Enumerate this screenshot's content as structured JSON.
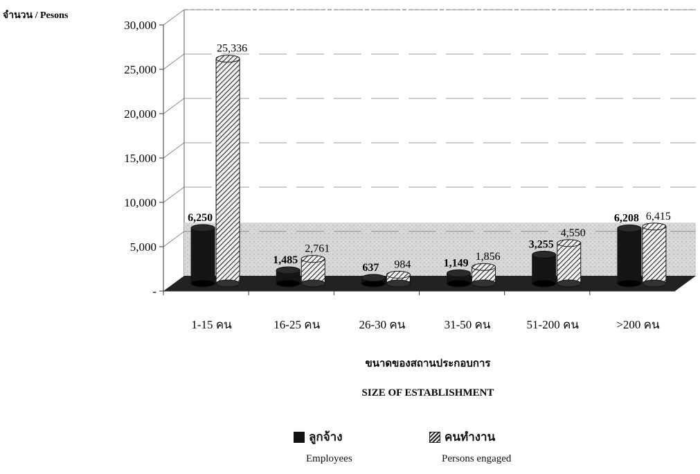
{
  "chart_data": {
    "type": "bar",
    "ylabel": "จำนวน / Pesons",
    "xlabel_th": "ขนาดของสถานประกอบการ",
    "xlabel_en": "SIZE OF ESTABLISHMENT",
    "categories": [
      "1-15 คน",
      "16-25 คน",
      "26-30 คน",
      "31-50 คน",
      "51-200 คน",
      ">200 คน"
    ],
    "series": [
      {
        "name": "ลูกจ้าง",
        "name_en": "Employees",
        "values": [
          6250,
          1485,
          637,
          1149,
          3255,
          6208
        ],
        "labels": [
          "6,250",
          "1,485",
          "637",
          "1,149",
          "3,255",
          "6,208"
        ],
        "color": "#111111"
      },
      {
        "name": "คนทำงาน",
        "name_en": "Persons engaged",
        "values": [
          25336,
          2761,
          984,
          1856,
          4550,
          6415
        ],
        "labels": [
          "25,336",
          "2,761",
          "984",
          "1,856",
          "4,550",
          "6,415"
        ],
        "color": "#555555"
      }
    ],
    "yticks": [
      "-",
      "5,000",
      "10,000",
      "15,000",
      "20,000",
      "25,000",
      "30,000"
    ],
    "ylim": [
      0,
      30000
    ],
    "grid": true,
    "legend_position": "bottom-center"
  }
}
